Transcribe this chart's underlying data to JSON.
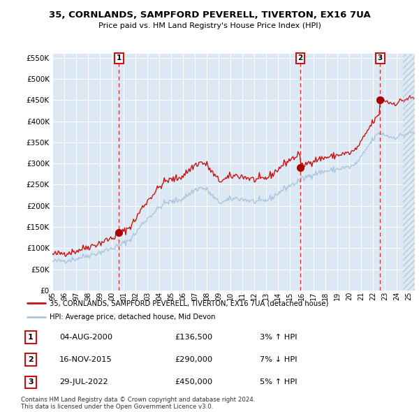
{
  "title": "35, CORNLANDS, SAMPFORD PEVERELL, TIVERTON, EX16 7UA",
  "subtitle": "Price paid vs. HM Land Registry's House Price Index (HPI)",
  "sale_years": [
    2000.6,
    2015.875,
    2022.58
  ],
  "sale_prices": [
    136500,
    290000,
    450000
  ],
  "sale_labels": [
    "1",
    "2",
    "3"
  ],
  "sale_hpi_pct": [
    "3% ↑ HPI",
    "7% ↓ HPI",
    "5% ↑ HPI"
  ],
  "sale_date_labels": [
    "04-AUG-2000",
    "16-NOV-2015",
    "29-JUL-2022"
  ],
  "sale_price_labels": [
    "£136,500",
    "£290,000",
    "£450,000"
  ],
  "hpi_line_color": "#aac4dd",
  "price_line_color": "#cc1111",
  "sale_marker_color": "#aa0000",
  "vline_color": "#dd2222",
  "legend_label_price": "35, CORNLANDS, SAMPFORD PEVERELL, TIVERTON, EX16 7UA (detached house)",
  "legend_label_hpi": "HPI: Average price, detached house, Mid Devon",
  "footnote": "Contains HM Land Registry data © Crown copyright and database right 2024.\nThis data is licensed under the Open Government Licence v3.0.",
  "ylim": [
    0,
    560000
  ],
  "yticks": [
    0,
    50000,
    100000,
    150000,
    200000,
    250000,
    300000,
    350000,
    400000,
    450000,
    500000,
    550000
  ],
  "xlim_start": 1995.0,
  "xlim_end": 2025.5,
  "hatch_start": 2024.5,
  "background_color": "#ffffff",
  "plot_bg_color": "#dce9f5"
}
